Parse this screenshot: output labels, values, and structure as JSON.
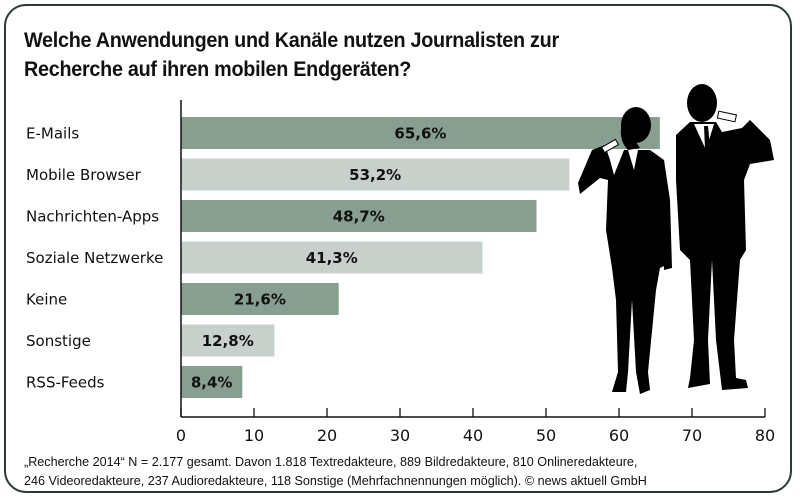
{
  "chart_data": {
    "type": "bar",
    "orientation": "horizontal",
    "title": "Welche Anwendungen und Kanäle nutzen Journalisten zur Recherche auf ihren mobilen Endgeräten?",
    "title_lines": [
      "Welche Anwendungen und Kanäle nutzen Journalisten zur",
      "Recherche auf ihren mobilen Endgeräten?"
    ],
    "categories": [
      "E-Mails",
      "Mobile Browser",
      "Nachrichten-Apps",
      "Soziale Netzwerke",
      "Keine",
      "Sonstige",
      "RSS-Feeds"
    ],
    "values": [
      65.6,
      53.2,
      48.7,
      41.3,
      21.6,
      12.8,
      8.4
    ],
    "value_labels": [
      "65,6%",
      "53,2%",
      "48,7%",
      "41,3%",
      "21,6%",
      "12,8%",
      "8,4%"
    ],
    "xlim": [
      0,
      80
    ],
    "xticks": [
      0,
      10,
      20,
      30,
      40,
      50,
      60,
      70,
      80
    ],
    "xtick_labels": [
      "0",
      "10",
      "20",
      "30",
      "40",
      "50",
      "60",
      "70",
      "80"
    ],
    "xlabel": "",
    "ylabel": "",
    "grid": false,
    "legend": "none",
    "colors": {
      "dark": "#889e91",
      "light": "#c8d0cb",
      "axis": "#111111",
      "frame": "#2a3a30"
    }
  },
  "footnote": {
    "line1": "„Recherche 2014“ N = 2.177 gesamt. Davon 1.818 Textredakteure, 889 Bildredakteure, 810 Onlineredakteure,",
    "line2": "246 Videoredakteure, 237 Audioredakteure, 118 Sonstige (Mehrfachnennungen möglich). © news aktuell GmbH"
  }
}
